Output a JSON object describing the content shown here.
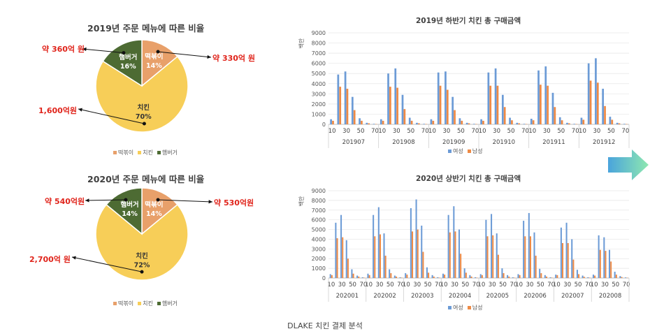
{
  "colors": {
    "tteokbokki": "#e8a06a",
    "chicken": "#f7ce58",
    "burger": "#4d6b33",
    "female": "#6c9bd6",
    "male": "#ee8a45",
    "callout": "#e0241b",
    "arrow_from": "#4aa4dc",
    "arrow_to": "#8ee8b0"
  },
  "caption": "DLAKE 치킨 결제 분석",
  "chart_data": [
    {
      "type": "pie",
      "title": "2019년 주문 메뉴에 따른 비율",
      "slices": [
        {
          "name": "떡볶이",
          "value": 14,
          "label": "14%",
          "callout": "약 330억 원"
        },
        {
          "name": "치킨",
          "value": 70,
          "label": "70%",
          "callout": "1,600억원"
        },
        {
          "name": "햄버거",
          "value": 16,
          "label": "16%",
          "callout": "약 360억 원"
        }
      ],
      "legend": [
        "떡볶이",
        "치킨",
        "햄버거"
      ]
    },
    {
      "type": "pie",
      "title": "2020년 주문 메뉴에 따른 비율",
      "slices": [
        {
          "name": "떡볶이",
          "value": 14,
          "label": "14%",
          "callout": "약 530억원"
        },
        {
          "name": "치킨",
          "value": 72,
          "label": "72%",
          "callout": "2,700억 원"
        },
        {
          "name": "햄버거",
          "value": 14,
          "label": "14%",
          "callout": "약 540억원"
        }
      ],
      "legend": [
        "떡볶이",
        "치킨",
        "햄버거"
      ]
    },
    {
      "type": "bar",
      "title": "2019년 하반기 치킨 총 구매금액",
      "ylabel": "백만",
      "ylim": [
        0,
        9000
      ],
      "yticks": [
        0,
        1000,
        2000,
        3000,
        4000,
        5000,
        6000,
        7000,
        8000,
        9000
      ],
      "age_groups": [
        10,
        20,
        30,
        40,
        50,
        60,
        70
      ],
      "age_tick_labels": [
        "10",
        "30",
        "50",
        "70"
      ],
      "months": [
        "201907",
        "201908",
        "201909",
        "201910",
        "201911",
        "201912"
      ],
      "series": [
        {
          "name": "여성",
          "values": [
            [
              500,
              4900,
              5200,
              2700,
              600,
              150,
              50
            ],
            [
              500,
              5000,
              5500,
              2900,
              650,
              150,
              50
            ],
            [
              500,
              5100,
              5200,
              2700,
              600,
              150,
              50
            ],
            [
              500,
              5100,
              5500,
              2900,
              650,
              150,
              50
            ],
            [
              550,
              5300,
              5700,
              3100,
              700,
              150,
              50
            ],
            [
              650,
              6000,
              6500,
              3500,
              750,
              150,
              50
            ]
          ]
        },
        {
          "name": "남성",
          "values": [
            [
              350,
              3700,
              3500,
              1400,
              350,
              100,
              30
            ],
            [
              350,
              3700,
              3600,
              1500,
              350,
              100,
              30
            ],
            [
              350,
              3800,
              3400,
              1400,
              350,
              100,
              30
            ],
            [
              350,
              3800,
              3800,
              1700,
              400,
              100,
              30
            ],
            [
              400,
              3900,
              3800,
              1700,
              400,
              100,
              30
            ],
            [
              450,
              4300,
              4100,
              1800,
              450,
              100,
              30
            ]
          ]
        }
      ],
      "legend": [
        "여성",
        "남성"
      ]
    },
    {
      "type": "bar",
      "title": "2020년 상반기 치킨 총 구매금액",
      "ylabel": "백만",
      "ylim": [
        0,
        9000
      ],
      "yticks": [
        0,
        1000,
        2000,
        3000,
        4000,
        5000,
        6000,
        7000,
        8000,
        9000
      ],
      "age_groups": [
        10,
        20,
        30,
        40,
        50,
        60,
        70
      ],
      "age_tick_labels": [
        "10",
        "30",
        "50",
        "70"
      ],
      "months": [
        "202001",
        "202002",
        "202003",
        "202004",
        "202005",
        "202006",
        "202007",
        "202008"
      ],
      "series": [
        {
          "name": "여성",
          "values": [
            [
              400,
              5700,
              6500,
              3900,
              900,
              250,
              80
            ],
            [
              450,
              6500,
              7300,
              4600,
              900,
              250,
              80
            ],
            [
              500,
              7200,
              8100,
              5400,
              1100,
              300,
              80
            ],
            [
              450,
              6500,
              7400,
              5000,
              1000,
              300,
              80
            ],
            [
              400,
              6000,
              6600,
              4600,
              1000,
              300,
              80
            ],
            [
              400,
              5900,
              6700,
              4700,
              950,
              300,
              80
            ],
            [
              350,
              5200,
              5700,
              4000,
              850,
              250,
              80
            ],
            [
              350,
              4400,
              4200,
              2900,
              650,
              200,
              60
            ]
          ]
        },
        {
          "name": "남성",
          "values": [
            [
              300,
              4100,
              4200,
              2000,
              450,
              150,
              40
            ],
            [
              300,
              4300,
              4500,
              2300,
              500,
              150,
              40
            ],
            [
              350,
              4800,
              5000,
              2700,
              550,
              150,
              40
            ],
            [
              350,
              4700,
              4800,
              2500,
              550,
              150,
              40
            ],
            [
              300,
              4300,
              4400,
              2400,
              500,
              150,
              40
            ],
            [
              300,
              4300,
              4300,
              2300,
              500,
              150,
              40
            ],
            [
              300,
              3600,
              3600,
              1900,
              400,
              130,
              40
            ],
            [
              250,
              2900,
              2800,
              1700,
              350,
              100,
              30
            ]
          ]
        }
      ],
      "legend": [
        "여성",
        "남성"
      ]
    }
  ]
}
